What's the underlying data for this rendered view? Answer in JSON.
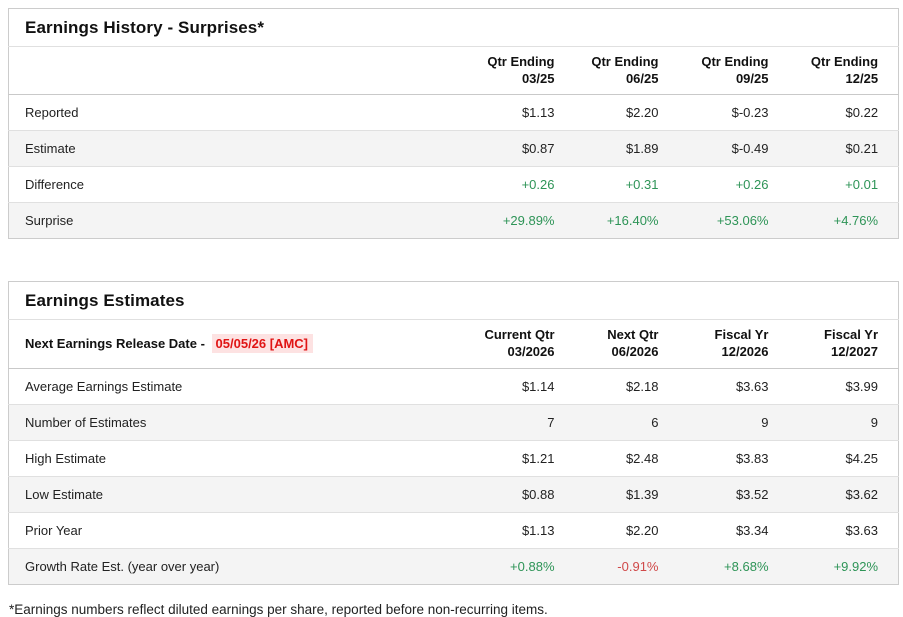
{
  "colors": {
    "positive_green": "#2e9457",
    "negative_red": "#d04949",
    "default_text": "#222222",
    "release_date_red": "#e01414",
    "release_date_bg": "#fde2e2"
  },
  "history": {
    "title": "Earnings History - Surprises*",
    "columns": [
      {
        "line1": "Qtr Ending",
        "line2": "03/25"
      },
      {
        "line1": "Qtr Ending",
        "line2": "06/25"
      },
      {
        "line1": "Qtr Ending",
        "line2": "09/25"
      },
      {
        "line1": "Qtr Ending",
        "line2": "12/25"
      }
    ],
    "rows": [
      {
        "label": "Reported",
        "values": [
          "$1.13",
          "$2.20",
          "$-0.23",
          "$0.22"
        ],
        "value_colors": [
          "#222222",
          "#222222",
          "#222222",
          "#222222"
        ]
      },
      {
        "label": "Estimate",
        "values": [
          "$0.87",
          "$1.89",
          "$-0.49",
          "$0.21"
        ],
        "value_colors": [
          "#222222",
          "#222222",
          "#222222",
          "#222222"
        ]
      },
      {
        "label": "Difference",
        "values": [
          "+0.26",
          "+0.31",
          "+0.26",
          "+0.01"
        ],
        "value_colors": [
          "#2e9457",
          "#2e9457",
          "#2e9457",
          "#2e9457"
        ]
      },
      {
        "label": "Surprise",
        "values": [
          "+29.89%",
          "+16.40%",
          "+53.06%",
          "+4.76%"
        ],
        "value_colors": [
          "#2e9457",
          "#2e9457",
          "#2e9457",
          "#2e9457"
        ]
      }
    ]
  },
  "estimates": {
    "title": "Earnings Estimates",
    "release_label": "Next Earnings Release Date - ",
    "release_date": "05/05/26 [AMC]",
    "columns": [
      {
        "line1": "Current Qtr",
        "line2": "03/2026"
      },
      {
        "line1": "Next Qtr",
        "line2": "06/2026"
      },
      {
        "line1": "Fiscal Yr",
        "line2": "12/2026"
      },
      {
        "line1": "Fiscal Yr",
        "line2": "12/2027"
      }
    ],
    "rows": [
      {
        "label": "Average Earnings Estimate",
        "values": [
          "$1.14",
          "$2.18",
          "$3.63",
          "$3.99"
        ],
        "value_colors": [
          "#222222",
          "#222222",
          "#222222",
          "#222222"
        ]
      },
      {
        "label": "Number of Estimates",
        "values": [
          "7",
          "6",
          "9",
          "9"
        ],
        "value_colors": [
          "#222222",
          "#222222",
          "#222222",
          "#222222"
        ]
      },
      {
        "label": "High Estimate",
        "values": [
          "$1.21",
          "$2.48",
          "$3.83",
          "$4.25"
        ],
        "value_colors": [
          "#222222",
          "#222222",
          "#222222",
          "#222222"
        ]
      },
      {
        "label": "Low Estimate",
        "values": [
          "$0.88",
          "$1.39",
          "$3.52",
          "$3.62"
        ],
        "value_colors": [
          "#222222",
          "#222222",
          "#222222",
          "#222222"
        ]
      },
      {
        "label": "Prior Year",
        "values": [
          "$1.13",
          "$2.20",
          "$3.34",
          "$3.63"
        ],
        "value_colors": [
          "#222222",
          "#222222",
          "#222222",
          "#222222"
        ]
      },
      {
        "label": "Growth Rate Est. (year over year)",
        "values": [
          "+0.88%",
          "-0.91%",
          "+8.68%",
          "+9.92%"
        ],
        "value_colors": [
          "#2e9457",
          "#d04949",
          "#2e9457",
          "#2e9457"
        ]
      }
    ]
  },
  "footnote": "*Earnings numbers reflect diluted earnings per share, reported before non-recurring items."
}
